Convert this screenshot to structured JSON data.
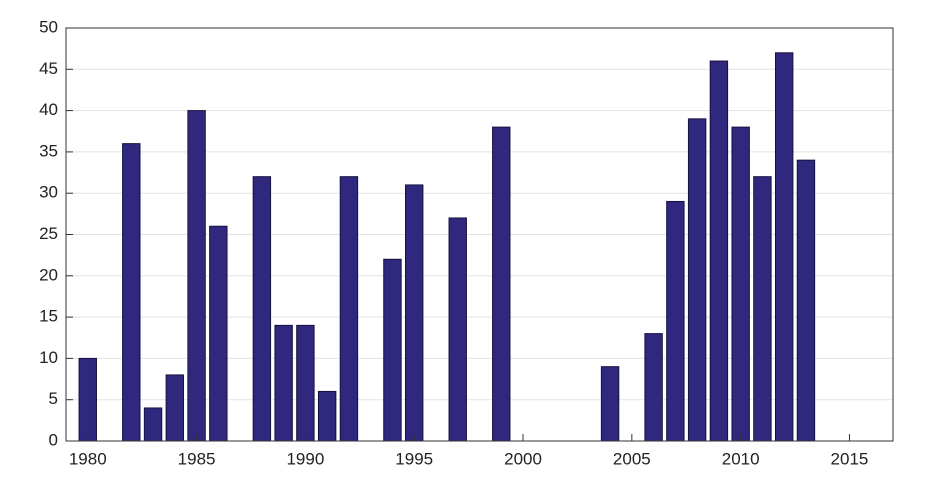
{
  "chart_data": {
    "type": "bar",
    "x": [
      1980,
      1981,
      1982,
      1983,
      1984,
      1985,
      1986,
      1987,
      1988,
      1989,
      1990,
      1991,
      1992,
      1993,
      1994,
      1995,
      1996,
      1997,
      1998,
      1999,
      2000,
      2001,
      2002,
      2003,
      2004,
      2005,
      2006,
      2007,
      2008,
      2009,
      2010,
      2011,
      2012,
      2013
    ],
    "values": [
      10,
      0,
      36,
      4,
      8,
      40,
      26,
      0,
      32,
      14,
      14,
      6,
      32,
      0,
      22,
      31,
      0,
      27,
      0,
      38,
      0,
      0,
      0,
      0,
      9,
      0,
      13,
      29,
      39,
      46,
      38,
      32,
      47,
      34
    ],
    "color": "#30287f",
    "xlim": [
      1979,
      2017
    ],
    "xticks": [
      1980,
      1985,
      1990,
      1995,
      2000,
      2005,
      2010,
      2015
    ],
    "ylim": [
      0,
      50
    ],
    "yticks": [
      0,
      5,
      10,
      15,
      20,
      25,
      30,
      35,
      40,
      45,
      50
    ],
    "grid": true
  }
}
